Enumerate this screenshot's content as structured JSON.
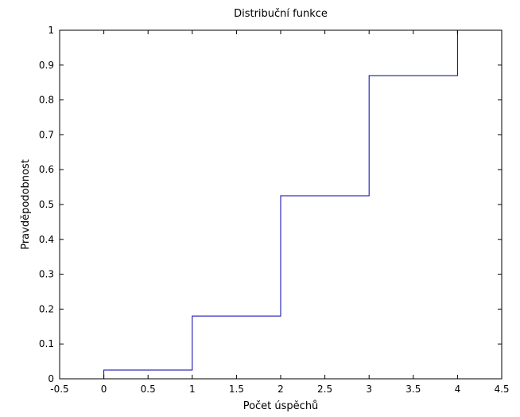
{
  "chart_data": {
    "type": "line",
    "title": "Distribuční funkce",
    "xlabel": "Počet úspěchů",
    "ylabel": "Pravděpodobnost",
    "xlim": [
      -0.5,
      4.5
    ],
    "ylim": [
      0,
      1
    ],
    "xticks": [
      -0.5,
      0,
      0.5,
      1,
      1.5,
      2,
      2.5,
      3,
      3.5,
      4,
      4.5
    ],
    "xtick_labels": [
      "-0.5",
      "0",
      "0.5",
      "1",
      "1.5",
      "2",
      "2.5",
      "3",
      "3.5",
      "4",
      "4.5"
    ],
    "yticks": [
      0,
      0.1,
      0.2,
      0.3,
      0.4,
      0.5,
      0.6,
      0.7,
      0.8,
      0.9,
      1
    ],
    "ytick_labels": [
      "0",
      "0.1",
      "0.2",
      "0.3",
      "0.4",
      "0.5",
      "0.6",
      "0.7",
      "0.8",
      "0.9",
      "1"
    ],
    "grid": false,
    "series": [
      {
        "style": "step",
        "color": "#0000aa",
        "x": [
          0,
          1,
          2,
          3,
          4
        ],
        "y": [
          0.025,
          0.18,
          0.525,
          0.87,
          1.0
        ]
      }
    ]
  }
}
